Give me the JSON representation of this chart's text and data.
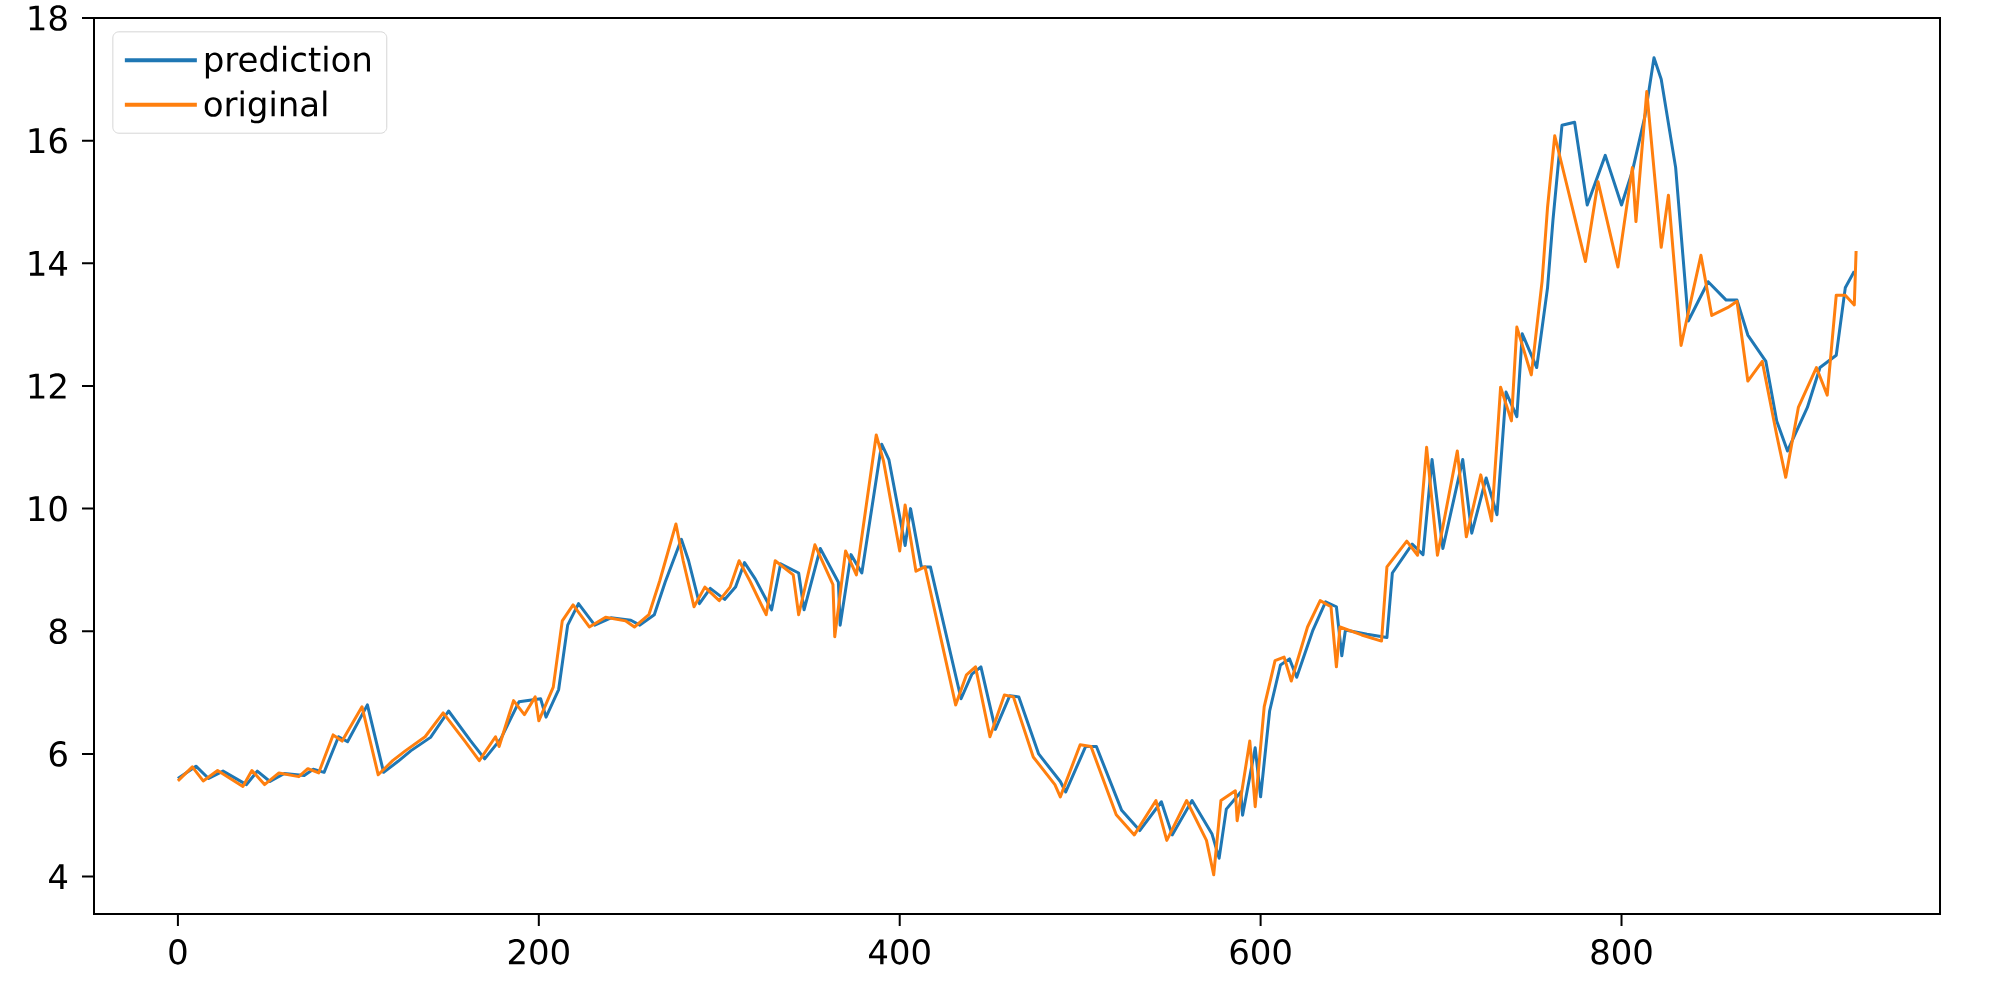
{
  "chart_data": {
    "type": "line",
    "xlim": [
      -46.5,
      976.5
    ],
    "ylim": [
      3.39,
      18.0
    ],
    "xticks": [
      0,
      200,
      400,
      600,
      800
    ],
    "yticks": [
      4,
      6,
      8,
      10,
      12,
      14,
      16,
      18
    ],
    "legend": "top left",
    "grid": false,
    "marker": "none",
    "line_style": "solid",
    "series": [
      {
        "name": "prediction",
        "color": "#1f77b4",
        "x": [
          0,
          10,
          17,
          25,
          38,
          44,
          51,
          59,
          70,
          75,
          81,
          89,
          94,
          105,
          114,
          122,
          129,
          140,
          150,
          162,
          170,
          179,
          189,
          201,
          204,
          211,
          216,
          222,
          231,
          240,
          251,
          256,
          264,
          270,
          279,
          283,
          289,
          295,
          303,
          309,
          314,
          320,
          329,
          334,
          344,
          347,
          356,
          366,
          367,
          373,
          379,
          390,
          394,
          403,
          406,
          412,
          417,
          434,
          440,
          445,
          453,
          461,
          466,
          477,
          489,
          492,
          503,
          509,
          523,
          533,
          545,
          551,
          562,
          573,
          577,
          581,
          589,
          590,
          597,
          600,
          605,
          611,
          616,
          620,
          629,
          636,
          642,
          645,
          647,
          659,
          670,
          673,
          684,
          690,
          695,
          701,
          712,
          717,
          725,
          731,
          736,
          742,
          745,
          753,
          759,
          762,
          767,
          774,
          781,
          791,
          800,
          806,
          813,
          818,
          822,
          830,
          837,
          848,
          858,
          864,
          870,
          880,
          886,
          892,
          903,
          910,
          919,
          924,
          929
        ],
        "values": [
          5.6,
          5.8,
          5.6,
          5.72,
          5.5,
          5.72,
          5.55,
          5.68,
          5.65,
          5.75,
          5.7,
          6.28,
          6.2,
          6.8,
          5.7,
          5.88,
          6.05,
          6.27,
          6.7,
          6.22,
          5.92,
          6.25,
          6.85,
          6.9,
          6.6,
          7.05,
          8.1,
          8.45,
          8.1,
          8.22,
          8.18,
          8.1,
          8.27,
          8.8,
          9.5,
          9.15,
          8.45,
          8.7,
          8.52,
          8.72,
          9.12,
          8.85,
          8.35,
          9.1,
          8.95,
          8.35,
          9.35,
          8.8,
          8.1,
          9.25,
          8.95,
          11.05,
          10.8,
          9.4,
          10.0,
          9.05,
          9.05,
          6.9,
          7.3,
          7.42,
          6.4,
          6.95,
          6.93,
          6.0,
          5.55,
          5.38,
          6.12,
          6.12,
          5.08,
          4.75,
          5.22,
          4.68,
          5.24,
          4.7,
          4.3,
          5.1,
          5.38,
          5.0,
          6.1,
          5.3,
          6.7,
          7.45,
          7.55,
          7.25,
          8.02,
          8.48,
          8.4,
          7.6,
          8.02,
          7.95,
          7.9,
          8.95,
          9.42,
          9.25,
          10.8,
          9.35,
          10.8,
          9.6,
          10.5,
          9.9,
          11.9,
          11.5,
          12.85,
          12.3,
          13.6,
          14.7,
          16.25,
          16.3,
          14.95,
          15.76,
          14.95,
          15.5,
          16.4,
          17.35,
          17.0,
          15.56,
          13.06,
          13.7,
          13.4,
          13.4,
          12.83,
          12.4,
          11.43,
          10.94,
          11.65,
          12.3,
          12.5,
          13.6,
          13.87
        ]
      },
      {
        "name": "original",
        "color": "#ff7f0e",
        "x": [
          0,
          8,
          14,
          22,
          36,
          41,
          48,
          56,
          67,
          72,
          78,
          86,
          91,
          102,
          111,
          119,
          126,
          137,
          147,
          159,
          167,
          176,
          178,
          186,
          192,
          198,
          200,
          208,
          213,
          219,
          228,
          237,
          248,
          253,
          261,
          267,
          276,
          280,
          286,
          292,
          300,
          306,
          311,
          317,
          326,
          331,
          341,
          344,
          353,
          363,
          364,
          370,
          376,
          387,
          391,
          400,
          403,
          409,
          414,
          431,
          437,
          442,
          450,
          458,
          463,
          474,
          486,
          489,
          500,
          506,
          520,
          530,
          542,
          548,
          559,
          570,
          574,
          578,
          586,
          587,
          594,
          597,
          602,
          608,
          613,
          617,
          626,
          633,
          639,
          642,
          644,
          656,
          667,
          670,
          681,
          687,
          692,
          698,
          709,
          714,
          722,
          728,
          733,
          739,
          742,
          750,
          756,
          759,
          763,
          770,
          780,
          787,
          798,
          806,
          808,
          814,
          822,
          826,
          833,
          844,
          850,
          859,
          864,
          870,
          878,
          886,
          891,
          898,
          908,
          914,
          919,
          924,
          929,
          930
        ],
        "values": [
          5.56,
          5.79,
          5.56,
          5.73,
          5.47,
          5.73,
          5.5,
          5.69,
          5.63,
          5.76,
          5.69,
          6.31,
          6.21,
          6.77,
          5.66,
          5.89,
          6.05,
          6.28,
          6.67,
          6.21,
          5.89,
          6.28,
          6.12,
          6.87,
          6.64,
          6.93,
          6.54,
          7.09,
          8.17,
          8.43,
          8.07,
          8.23,
          8.17,
          8.07,
          8.27,
          8.82,
          9.75,
          9.15,
          8.4,
          8.72,
          8.5,
          8.72,
          9.15,
          8.82,
          8.27,
          9.15,
          8.92,
          8.27,
          9.41,
          8.76,
          7.91,
          9.31,
          8.92,
          11.2,
          10.78,
          9.31,
          10.06,
          8.98,
          9.05,
          6.8,
          7.29,
          7.42,
          6.28,
          6.96,
          6.93,
          5.95,
          5.5,
          5.3,
          6.15,
          6.12,
          5.01,
          4.68,
          5.24,
          4.59,
          5.24,
          4.59,
          4.03,
          5.24,
          5.4,
          4.91,
          6.21,
          5.14,
          6.77,
          7.52,
          7.58,
          7.19,
          8.07,
          8.5,
          8.4,
          7.42,
          8.07,
          7.94,
          7.84,
          9.05,
          9.47,
          9.24,
          11.0,
          9.24,
          10.94,
          9.54,
          10.55,
          9.8,
          11.98,
          11.43,
          12.96,
          12.18,
          13.71,
          14.91,
          16.08,
          15.24,
          14.03,
          15.33,
          13.94,
          15.56,
          14.68,
          16.8,
          14.26,
          15.11,
          12.66,
          14.13,
          13.15,
          13.28,
          13.38,
          12.08,
          12.4,
          11.2,
          10.51,
          11.65,
          12.3,
          11.85,
          13.48,
          13.48,
          13.32,
          14.2
        ]
      }
    ]
  }
}
